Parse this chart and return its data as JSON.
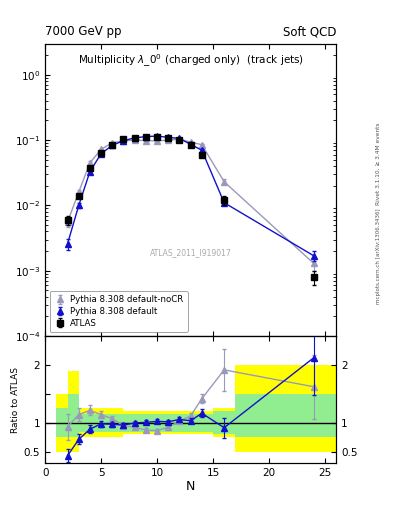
{
  "title_top_left": "7000 GeV pp",
  "title_top_right": "Soft QCD",
  "plot_title": "Multiplicity $\\lambda\\_0^0$ (charged only)  (track jets)",
  "watermark": "ATLAS_2011_I919017",
  "rivet_label": "Rivet 3.1.10, ≥ 3.4M events",
  "arxiv_label": "mcplots.cern.ch [arXiv:1306.3436]",
  "atlas_x": [
    2,
    3,
    4,
    5,
    6,
    7,
    8,
    9,
    10,
    11,
    12,
    13,
    14,
    16,
    24
  ],
  "atlas_y": [
    0.006,
    0.014,
    0.037,
    0.063,
    0.085,
    0.102,
    0.108,
    0.112,
    0.112,
    0.108,
    0.1,
    0.083,
    0.06,
    0.012,
    0.0008
  ],
  "atlas_yerr": [
    0.001,
    0.001,
    0.002,
    0.003,
    0.003,
    0.003,
    0.003,
    0.003,
    0.003,
    0.003,
    0.003,
    0.003,
    0.003,
    0.002,
    0.0002
  ],
  "py_def_x": [
    2,
    3,
    4,
    5,
    6,
    7,
    8,
    9,
    10,
    11,
    12,
    13,
    14,
    16,
    24
  ],
  "py_def_y": [
    0.0026,
    0.01,
    0.033,
    0.062,
    0.083,
    0.098,
    0.108,
    0.113,
    0.115,
    0.11,
    0.106,
    0.086,
    0.07,
    0.011,
    0.0017
  ],
  "py_def_yerr": [
    0.0005,
    0.001,
    0.002,
    0.002,
    0.002,
    0.002,
    0.002,
    0.002,
    0.002,
    0.002,
    0.002,
    0.002,
    0.002,
    0.001,
    0.0003
  ],
  "py_nocr_x": [
    2,
    3,
    4,
    5,
    6,
    7,
    8,
    9,
    10,
    11,
    12,
    13,
    14,
    16,
    24
  ],
  "py_nocr_y": [
    0.0056,
    0.016,
    0.045,
    0.072,
    0.091,
    0.097,
    0.1,
    0.098,
    0.097,
    0.1,
    0.103,
    0.093,
    0.085,
    0.023,
    0.0013
  ],
  "py_nocr_yerr": [
    0.001,
    0.001,
    0.002,
    0.002,
    0.002,
    0.002,
    0.002,
    0.002,
    0.002,
    0.002,
    0.002,
    0.002,
    0.002,
    0.002,
    0.0003
  ],
  "atlas_color": "black",
  "py_def_color": "#1111cc",
  "py_nocr_color": "#9999bb",
  "ylim_main": [
    0.0001,
    3.0
  ],
  "ylim_ratio": [
    0.3,
    2.5
  ],
  "xlim": [
    1,
    26
  ],
  "xlabel": "N",
  "ylabel_ratio": "Ratio to ATLAS",
  "band_edges": [
    1,
    2,
    3,
    5,
    7,
    9,
    11,
    13,
    15,
    17,
    22,
    26
  ],
  "band_yellow_lo": [
    0.5,
    0.5,
    0.75,
    0.75,
    0.8,
    0.8,
    0.8,
    0.8,
    0.75,
    0.5,
    0.5
  ],
  "band_yellow_hi": [
    1.5,
    1.9,
    1.25,
    1.25,
    1.2,
    1.2,
    1.2,
    1.2,
    1.25,
    2.0,
    2.0
  ],
  "band_green_lo": [
    0.75,
    0.75,
    0.85,
    0.85,
    0.85,
    0.85,
    0.85,
    0.85,
    0.8,
    0.75,
    0.75
  ],
  "band_green_hi": [
    1.25,
    1.5,
    1.15,
    1.15,
    1.15,
    1.15,
    1.15,
    1.15,
    1.2,
    1.5,
    1.5
  ]
}
